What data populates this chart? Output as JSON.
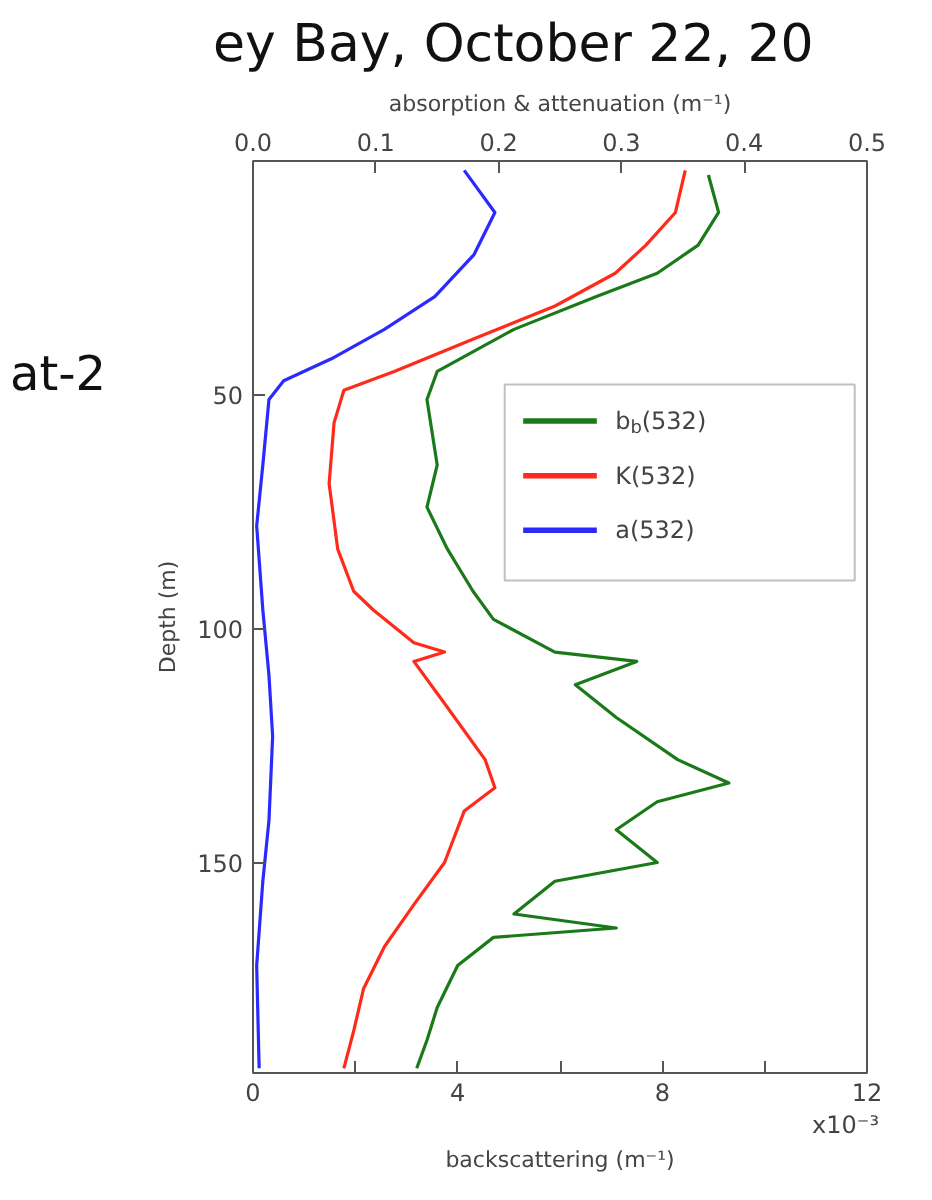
{
  "chart_data": {
    "type": "line",
    "title": "ey Bay, October 22, 20",
    "annotations": [
      "at-2",
      "x10⁻³"
    ],
    "xlabel": "backscattering (m⁻¹)",
    "x2label": "absorption & attenuation (m⁻¹)",
    "ylabel": "Depth (m)",
    "xlim": [
      0,
      12
    ],
    "xticks": [
      0,
      {
        "value": 2,
        "label": null
      },
      4,
      {
        "value": 6,
        "label": null
      },
      8,
      {
        "value": 10,
        "label": null
      },
      12
    ],
    "x2lim": [
      0,
      0.5
    ],
    "x2ticks": [
      {
        "value": 0,
        "label": "0.0"
      },
      0.1,
      0.2,
      0.3,
      0.4,
      0.5
    ],
    "ylim": [
      195,
      0
    ],
    "yticks": [
      50,
      100,
      150
    ],
    "grid": false,
    "legend": "right",
    "marker": "none",
    "line_style": "solid",
    "series": [
      {
        "name": "b$_{b}$(532)",
        "color": "#1a7a1a",
        "x": [
          8.9,
          9.1,
          8.7,
          7.9,
          6.7,
          5.1,
          3.6,
          3.4,
          3.6,
          3.4,
          3.8,
          4.3,
          4.7,
          5.9,
          7.5,
          6.3,
          7.1,
          8.3,
          9.3,
          7.9,
          7.1,
          7.9,
          5.9,
          5.1,
          7.1,
          4.7,
          4.0,
          3.6,
          3.4,
          3.2
        ],
        "values": [
          3,
          11,
          18,
          24,
          29,
          36,
          45,
          51,
          65,
          74,
          83,
          92,
          98,
          105,
          107,
          112,
          119,
          128,
          133,
          137,
          143,
          150,
          154,
          161,
          164,
          166,
          172,
          181,
          188,
          194
        ]
      },
      {
        "name": "K(532)",
        "color": "#ff2a1a",
        "axis": "x2",
        "x": [
          0.352,
          0.344,
          0.32,
          0.295,
          0.246,
          0.18,
          0.115,
          0.074,
          0.066,
          0.062,
          0.069,
          0.082,
          0.098,
          0.131,
          0.156,
          0.131,
          0.156,
          0.189,
          0.197,
          0.172,
          0.156,
          0.131,
          0.107,
          0.09,
          0.082,
          0.074
        ],
        "values": [
          2,
          11,
          18,
          24,
          31,
          38,
          45,
          49,
          56,
          69,
          83,
          92,
          96,
          103,
          105,
          107,
          116,
          128,
          134,
          139,
          150,
          159,
          168,
          177,
          186,
          194
        ]
      },
      {
        "name": "a(532)",
        "color": "#2a2aff",
        "axis": "x2",
        "x": [
          0.172,
          0.197,
          0.18,
          0.148,
          0.107,
          0.066,
          0.025,
          0.013,
          0.008,
          0.003,
          0.008,
          0.013,
          0.016,
          0.013,
          0.008,
          0.003,
          0.005
        ],
        "values": [
          2,
          11,
          20,
          29,
          36,
          42,
          47,
          51,
          65,
          78,
          96,
          110,
          123,
          141,
          154,
          172,
          194
        ]
      }
    ]
  }
}
